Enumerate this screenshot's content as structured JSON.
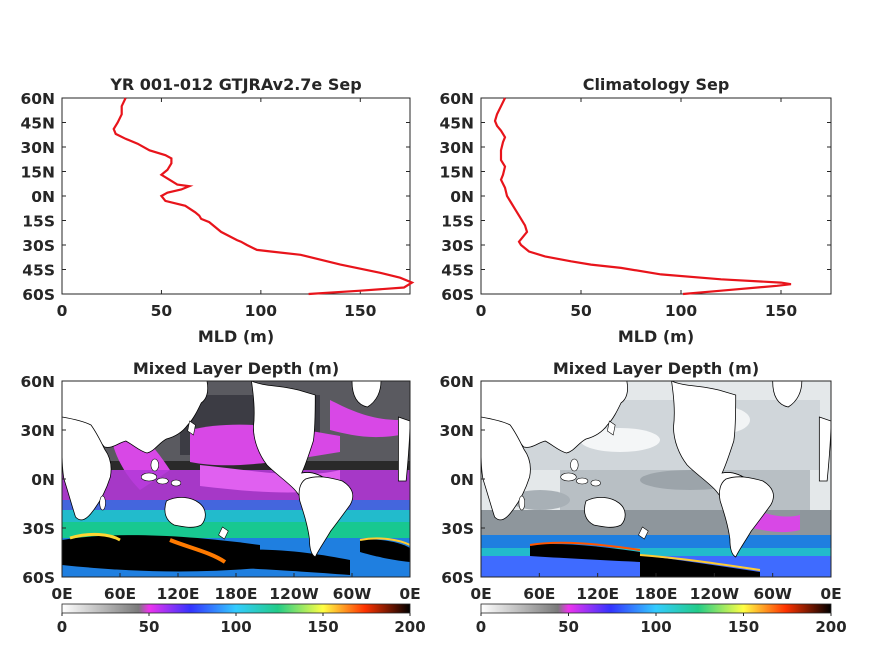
{
  "chart_data": [
    {
      "type": "line",
      "title": "YR 001-012 GTJRAv2.7e Sep",
      "xlabel": "MLD (m)",
      "ylabel": "",
      "xlim": [
        0,
        175
      ],
      "ylim": [
        -60,
        60
      ],
      "x_ticks": [
        "0",
        "50",
        "100",
        "150"
      ],
      "y_ticks": [
        "60S",
        "45S",
        "30S",
        "15S",
        "0N",
        "15N",
        "30N",
        "45N",
        "60N"
      ],
      "line_color": "#e8141b",
      "series": [
        {
          "mld": [
            124,
            150,
            172,
            176,
            170,
            160,
            140,
            120,
            105,
            98,
            93,
            90,
            88,
            80,
            74,
            70,
            69,
            67,
            62,
            52,
            50,
            53,
            60,
            64,
            58,
            54,
            50,
            53,
            55,
            55,
            52,
            44,
            38,
            32,
            27,
            26,
            28,
            30,
            30,
            32
          ],
          "latitude": [
            -60,
            -58,
            -56,
            -53,
            -50,
            -47,
            -42,
            -36,
            -34,
            -33,
            -30,
            -28,
            -27,
            -22,
            -16,
            -14,
            -12,
            -10,
            -6,
            -3,
            0,
            2,
            4,
            6,
            7,
            10,
            13,
            16,
            20,
            23,
            25,
            28,
            32,
            35,
            38,
            41,
            45,
            50,
            55,
            60
          ]
        }
      ]
    },
    {
      "type": "line",
      "title": "Climatology Sep",
      "xlabel": "MLD (m)",
      "ylabel": "",
      "xlim": [
        0,
        175
      ],
      "ylim": [
        -60,
        60
      ],
      "x_ticks": [
        "0",
        "50",
        "100",
        "150"
      ],
      "y_ticks": [
        "60S",
        "45S",
        "30S",
        "15S",
        "0N",
        "15N",
        "30N",
        "45N",
        "60N"
      ],
      "line_color": "#e8141b",
      "series": [
        {
          "mld": [
            101,
            120,
            148,
            155,
            150,
            120,
            90,
            70,
            55,
            45,
            32,
            24,
            20,
            19,
            21,
            23,
            22,
            19,
            17,
            15,
            13,
            12,
            10,
            11,
            12,
            10,
            10,
            11,
            12,
            10,
            8,
            7,
            8,
            10,
            12
          ],
          "latitude": [
            -60,
            -58,
            -55,
            -54,
            -53,
            -51,
            -48,
            -44,
            -42,
            -40,
            -37,
            -34,
            -30,
            -28,
            -25,
            -22,
            -18,
            -12,
            -8,
            -4,
            0,
            5,
            10,
            13,
            18,
            22,
            28,
            33,
            36,
            40,
            43,
            46,
            50,
            55,
            60
          ]
        }
      ]
    },
    {
      "type": "heatmap",
      "title": "Mixed Layer Depth (m)",
      "x_ticks": [
        "0E",
        "60E",
        "120E",
        "180E",
        "120W",
        "60W",
        "0E"
      ],
      "y_ticks": [
        "60S",
        "30S",
        "0N",
        "30N",
        "60N"
      ],
      "colorbar_ticks": [
        "0",
        "50",
        "100",
        "150",
        "200"
      ],
      "colorbar_range": [
        0,
        200
      ]
    },
    {
      "type": "heatmap",
      "title": "Mixed Layer Depth (m)",
      "x_ticks": [
        "0E",
        "60E",
        "120E",
        "180E",
        "120W",
        "60W",
        "0E"
      ],
      "y_ticks": [
        "60S",
        "30S",
        "0N",
        "30N",
        "60N"
      ],
      "colorbar_ticks": [
        "0",
        "50",
        "100",
        "150",
        "200"
      ],
      "colorbar_range": [
        0,
        200
      ]
    }
  ]
}
